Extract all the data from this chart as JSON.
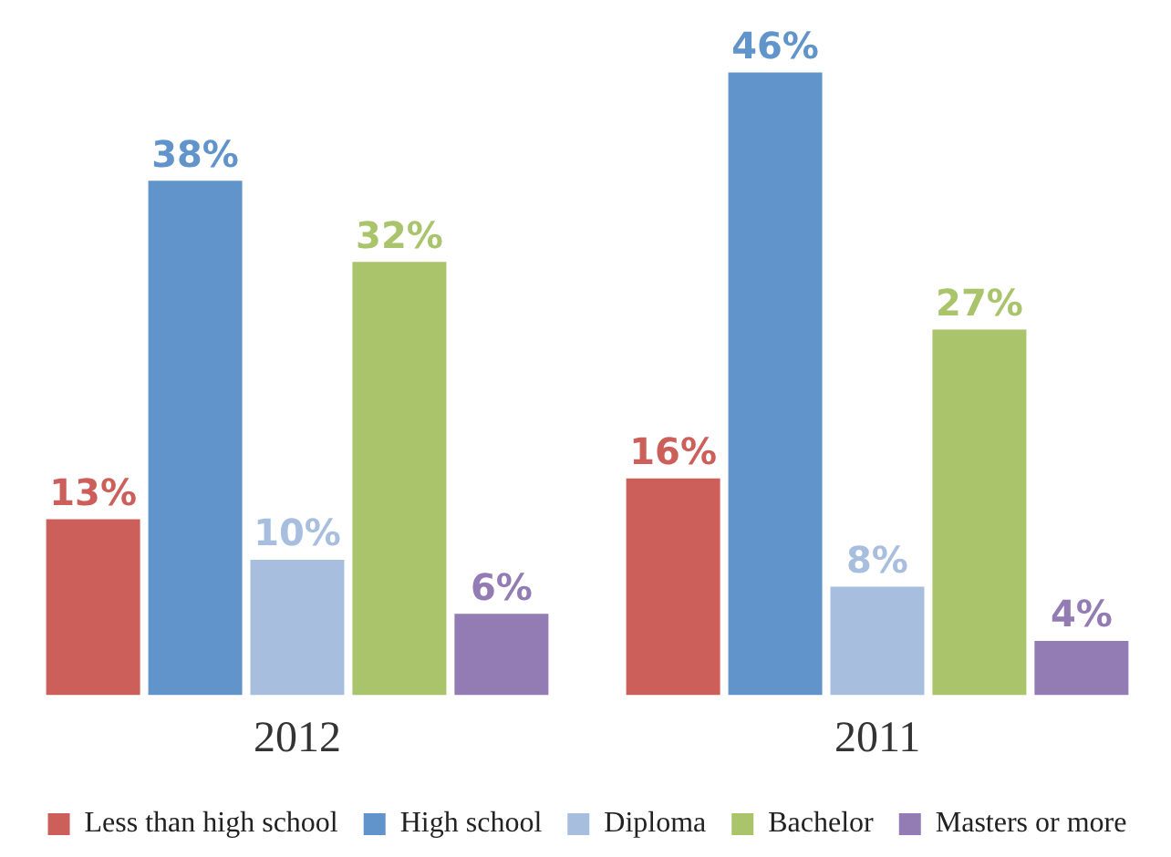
{
  "chart_data": {
    "type": "bar",
    "categories": [
      "2012",
      "2011"
    ],
    "series": [
      {
        "name": "Less than high school",
        "color": "#cd5f5a",
        "values": [
          13,
          16
        ],
        "value_labels": [
          "13%",
          "16%"
        ]
      },
      {
        "name": "High school",
        "color": "#6094cb",
        "values": [
          38,
          46
        ],
        "value_labels": [
          "38%",
          "46%"
        ]
      },
      {
        "name": "Diploma",
        "color": "#a7bedf",
        "values": [
          10,
          8
        ],
        "value_labels": [
          "10%",
          "8%"
        ]
      },
      {
        "name": "Bachelor",
        "color": "#a9c46b",
        "values": [
          32,
          27
        ],
        "value_labels": [
          "32%",
          "27%"
        ]
      },
      {
        "name": "Masters or more",
        "color": "#937bb3",
        "values": [
          6,
          4
        ],
        "value_labels": [
          "6%",
          "4%"
        ]
      }
    ],
    "legend": "bottom",
    "grid": false
  }
}
